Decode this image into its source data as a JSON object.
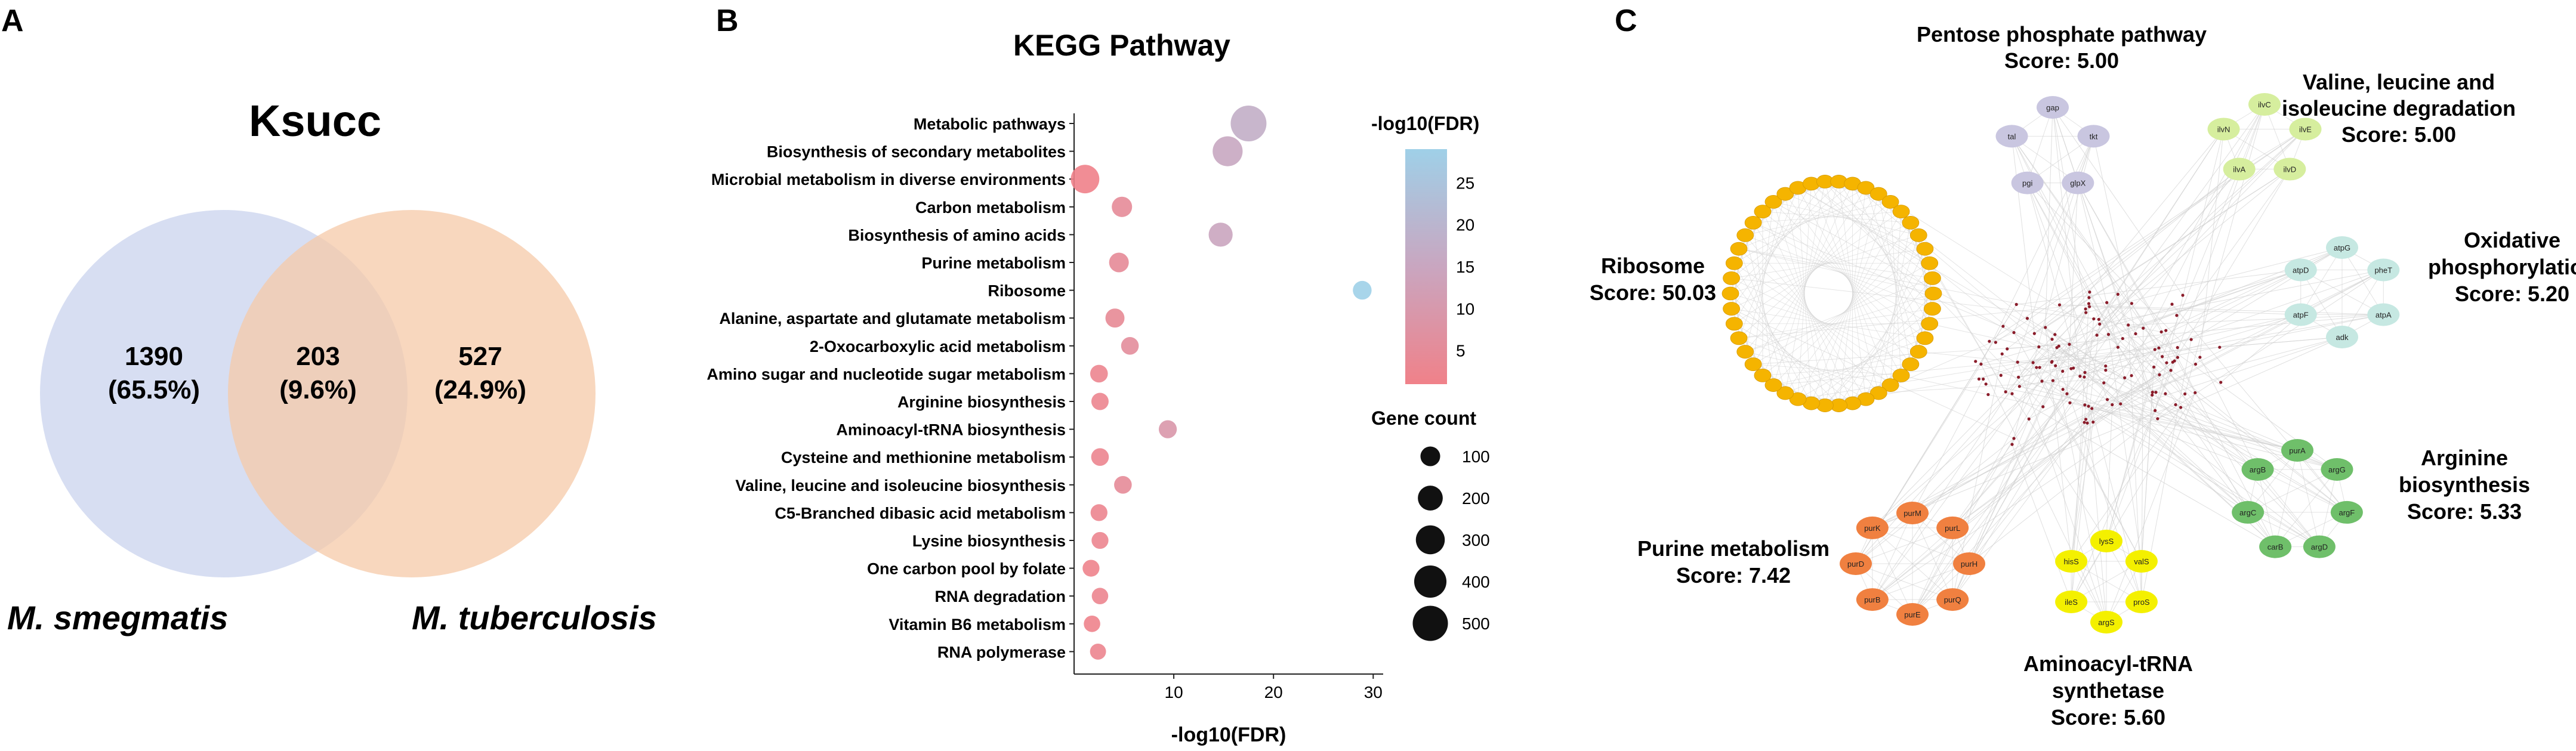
{
  "panel_letters": {
    "a": "A",
    "b": "B",
    "c": "C"
  },
  "venn": {
    "title": "Ksucc",
    "left_label": "M. smegmatis",
    "right_label": "M. tuberculosis",
    "left_only": {
      "count": "1390",
      "pct": "(65.5%)"
    },
    "overlap": {
      "count": "203",
      "pct": "(9.6%)"
    },
    "right_only": {
      "count": "527",
      "pct": "(24.9%)"
    },
    "colors": {
      "left": "#c9d3ee",
      "right": "#f6c9a8"
    }
  },
  "chart_data": {
    "type": "scatter",
    "title": "KEGG Pathway",
    "xlabel": "-log10(FDR)",
    "ylabel": "",
    "xlim": [
      0,
      31
    ],
    "xticks": [
      "10",
      "20",
      "30"
    ],
    "categories": [
      "Metabolic pathways",
      "Biosynthesis of secondary metabolites",
      "Microbial metabolism in diverse environments",
      "Carbon metabolism",
      "Biosynthesis of amino acids",
      "Purine metabolism",
      "Ribosome",
      "Alanine, aspartate and glutamate metabolism",
      "2-Oxocarboxylic acid metabolism",
      "Amino sugar and nucleotide sugar metabolism",
      "Arginine biosynthesis",
      "Aminoacyl-tRNA biosynthesis",
      "Cysteine and methionine metabolism",
      "Valine, leucine and isoleucine biosynthesis",
      "C5-Branched dibasic acid metabolism",
      "Lysine biosynthesis",
      "One carbon pool by folate",
      "RNA degradation",
      "Vitamin B6 metabolism",
      "RNA polymerase"
    ],
    "x": [
      17.5,
      15.4,
      1.1,
      4.8,
      14.7,
      4.5,
      28.9,
      4.1,
      5.6,
      2.5,
      2.6,
      9.4,
      2.6,
      4.9,
      2.5,
      2.6,
      1.7,
      2.6,
      1.8,
      2.4
    ],
    "gene_count": [
      520,
      330,
      290,
      110,
      180,
      100,
      85,
      90,
      70,
      70,
      65,
      75,
      70,
      70,
      60,
      60,
      60,
      55,
      55,
      50
    ],
    "fdr_scale": {
      "label": "-log10(FDR)",
      "min": 1,
      "max": 29,
      "ticks": [
        "5",
        "10",
        "15",
        "20",
        "25"
      ],
      "low_color": "#f08189",
      "high_color": "#9fd0e8"
    },
    "size_legend": {
      "label": "Gene count",
      "values": [
        100,
        200,
        300,
        400,
        500
      ],
      "labels": [
        "100",
        "200",
        "300",
        "400",
        "500"
      ]
    }
  },
  "network": {
    "clusters": [
      {
        "id": "ribosome",
        "label": "Ribosome",
        "score": "Score: 50.03",
        "color": "#f5b400"
      },
      {
        "id": "ppp",
        "label": "Pentose phosphate pathway",
        "score": "Score: 5.00",
        "color": "#c9c6e0",
        "genes": [
          "gap",
          "tkt",
          "glpX",
          "pgi",
          "tal"
        ]
      },
      {
        "id": "vli",
        "label_lines": [
          "Valine, leucine and",
          "isoleucine degradation"
        ],
        "score": "Score: 5.00",
        "color": "#d6ee9e",
        "genes": [
          "ilvC",
          "ilvE",
          "ilvD",
          "ilvA",
          "ilvN"
        ]
      },
      {
        "id": "oxphos",
        "label_lines": [
          "Oxidative",
          "phosphorylation"
        ],
        "score": "Score: 5.20",
        "color": "#c6e8e2",
        "genes": [
          "atpG",
          "pheT",
          "atpA",
          "adk",
          "atpF",
          "atpD"
        ]
      },
      {
        "id": "arg",
        "label_lines": [
          "Arginine",
          "biosynthesis"
        ],
        "score": "Score: 5.33",
        "color": "#6fbf6a",
        "genes": [
          "purA",
          "argG",
          "argF",
          "argD",
          "carB",
          "argC",
          "argB"
        ]
      },
      {
        "id": "trna",
        "label_lines": [
          "Aminoacyl-tRNA",
          "synthetase"
        ],
        "score": "Score: 5.60",
        "color": "#f4f000",
        "genes": [
          "lysS",
          "valS",
          "proS",
          "argS",
          "ileS",
          "hisS"
        ]
      },
      {
        "id": "purine",
        "label": "Purine metabolism",
        "score": "Score: 7.42",
        "color": "#f08040",
        "genes": [
          "purM",
          "purL",
          "purH",
          "purQ",
          "purE",
          "purB",
          "purD",
          "purK"
        ]
      }
    ]
  }
}
